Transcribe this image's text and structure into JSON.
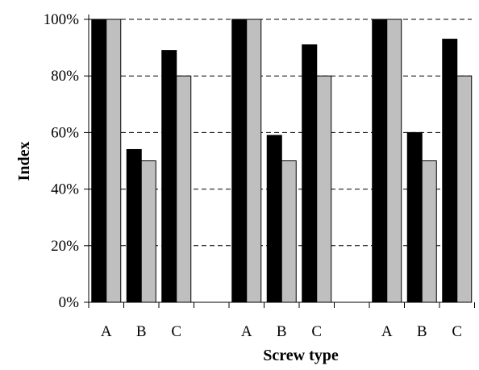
{
  "chart_data": {
    "type": "bar",
    "xlabel": "Screw type",
    "ylabel": "Index",
    "ylim": [
      0,
      100
    ],
    "yticks": [
      0,
      20,
      40,
      60,
      80,
      100
    ],
    "ytick_format": "%",
    "grid": "dashed horizontal",
    "legend": "none",
    "groups": [
      {
        "categories": [
          "A",
          "B",
          "C"
        ],
        "series": [
          {
            "values": [
              100,
              54,
              89
            ],
            "color": "#000000"
          },
          {
            "values": [
              100,
              50,
              80
            ],
            "color": "#bfbfbf"
          }
        ]
      },
      {
        "categories": [
          "A",
          "B",
          "C"
        ],
        "series": [
          {
            "values": [
              100,
              59,
              91
            ],
            "color": "#000000"
          },
          {
            "values": [
              100,
              50,
              80
            ],
            "color": "#bfbfbf"
          }
        ]
      },
      {
        "categories": [
          "A",
          "B",
          "C"
        ],
        "series": [
          {
            "values": [
              100,
              60,
              93
            ],
            "color": "#000000"
          },
          {
            "values": [
              100,
              50,
              80
            ],
            "color": "#bfbfbf"
          }
        ]
      }
    ]
  }
}
